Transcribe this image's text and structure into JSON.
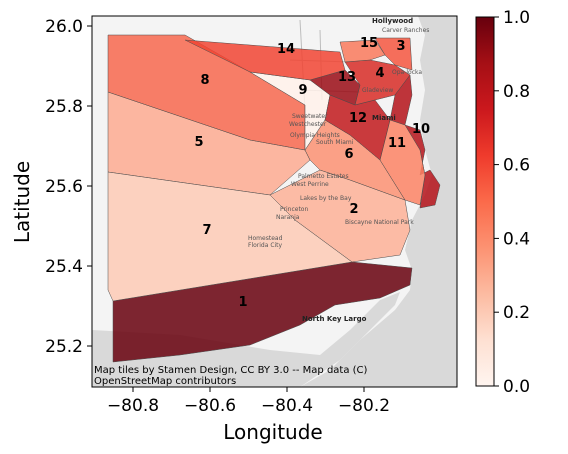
{
  "map": {
    "xlabel": "Longitude",
    "ylabel": "Latitude",
    "x_ticks": [
      "−80.8",
      "−80.6",
      "−80.4",
      "−80.2"
    ],
    "y_ticks": [
      "26.0",
      "25.8",
      "25.6",
      "25.4",
      "25.2"
    ],
    "attribution_line1": "Map tiles by Stamen Design, CC BY 3.0 -- Map data (C)",
    "attribution_line2": "OpenStreetMap contributors",
    "basemap_labels": [
      "Hollywood",
      "Carver Ranches",
      "Opa-locka",
      "Gladeview",
      "Miami",
      "Sweetwater",
      "Westchester",
      "Olympia Heights",
      "South Miami",
      "Palmetto Estates",
      "West Perrine",
      "Lakes by the Bay",
      "Princeton",
      "Naranja",
      "Homestead",
      "Florida City",
      "Biscayne National Park",
      "North Key Largo"
    ],
    "colorbar": {
      "ticks": [
        "0.0",
        "0.2",
        "0.4",
        "0.6",
        "0.8",
        "1.0"
      ],
      "min": 0.0,
      "max": 1.0,
      "colors": [
        "#fff5f0",
        "#fdcab5",
        "#fc8a6a",
        "#f14432",
        "#bc141a",
        "#67000d"
      ]
    },
    "regions": [
      {
        "label": "1",
        "value": 1.0
      },
      {
        "label": "2",
        "value": 0.28
      },
      {
        "label": "3",
        "value": 0.55
      },
      {
        "label": "4",
        "value": 0.7
      },
      {
        "label": "5",
        "value": 0.3
      },
      {
        "label": "6",
        "value": 0.38
      },
      {
        "label": "7",
        "value": 0.2
      },
      {
        "label": "8",
        "value": 0.5
      },
      {
        "label": "9",
        "value": 0.02
      },
      {
        "label": "10",
        "value": 0.82
      },
      {
        "label": "11",
        "value": 0.42
      },
      {
        "label": "12",
        "value": 0.78
      },
      {
        "label": "13",
        "value": 0.88
      },
      {
        "label": "14",
        "value": 0.6
      },
      {
        "label": "15",
        "value": 0.45
      }
    ]
  }
}
